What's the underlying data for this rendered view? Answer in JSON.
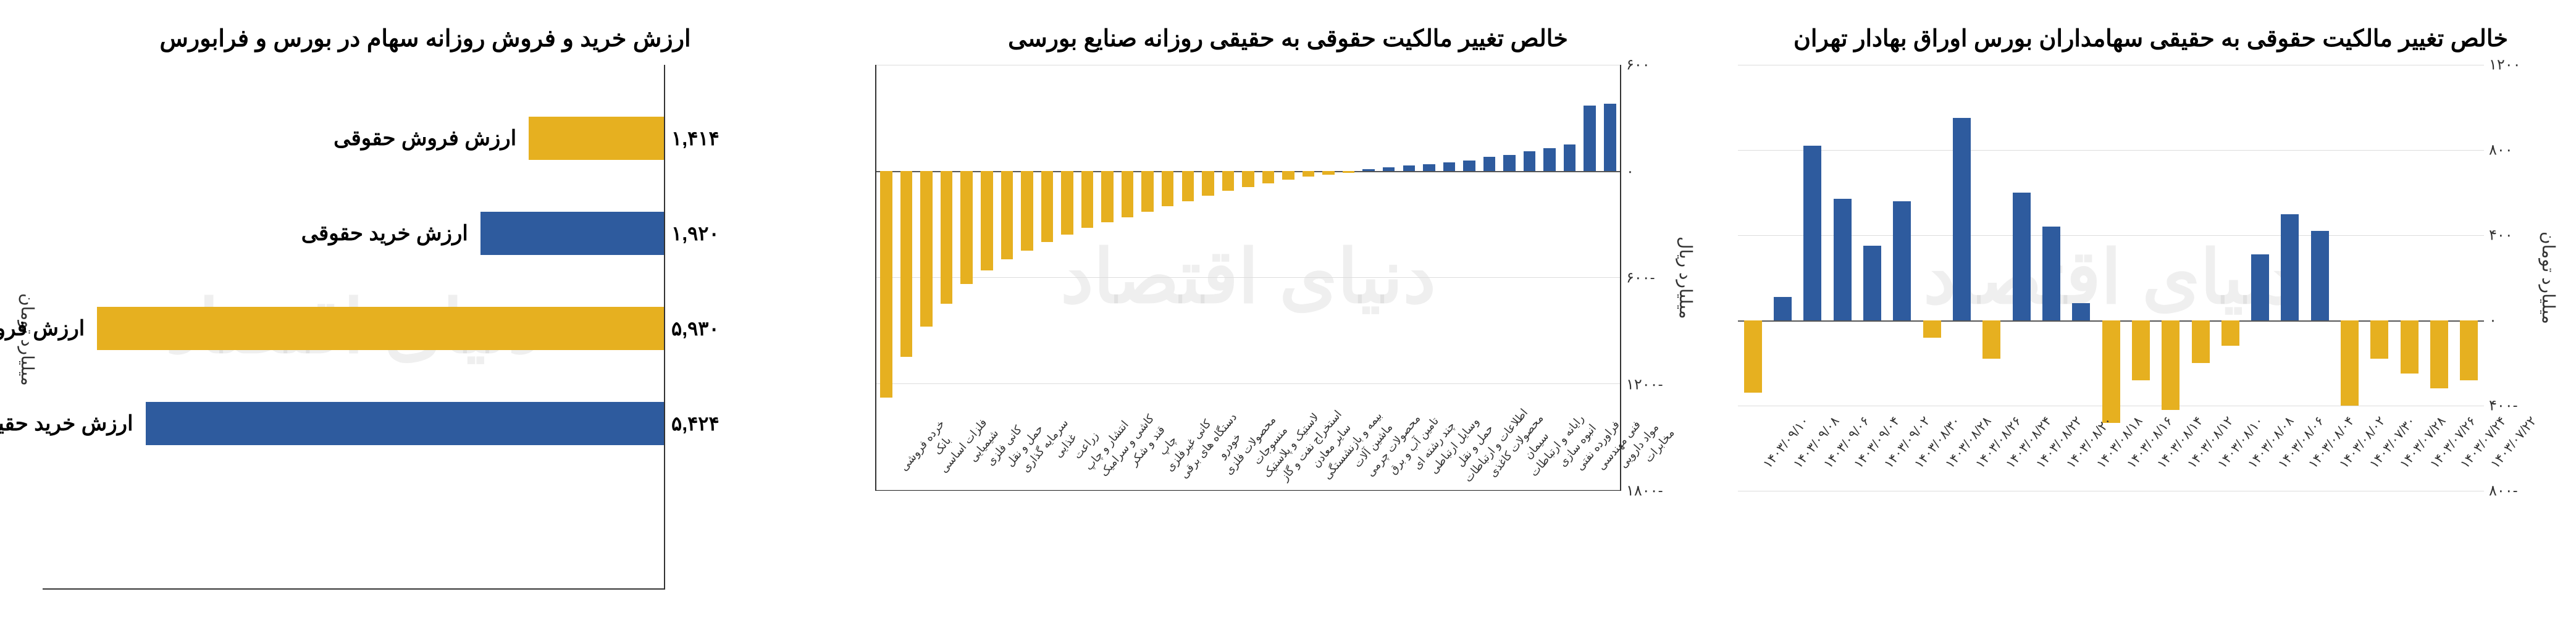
{
  "colors": {
    "blue": "#2e5b9e",
    "yellow": "#e6b020",
    "grid": "#dddddd",
    "axis": "#333333",
    "text": "#000000",
    "bg": "#ffffff"
  },
  "watermark": "دنیای اقتصاد",
  "chart1": {
    "title": "ارزش خرید و فروش روزانه سهام در بورس و فرابورس",
    "ylabel": "میلیارد تومان",
    "xmax": 6500,
    "rows": [
      {
        "label": "ارزش فروش حقوقی",
        "value": 1414,
        "display": "۱,۴۱۴",
        "color": "yellow"
      },
      {
        "label": "ارزش خرید حقوقی",
        "value": 1920,
        "display": "۱,۹۲۰",
        "color": "blue"
      },
      {
        "label": "ارزش فروش حقیقی",
        "value": 5930,
        "display": "۵,۹۳۰",
        "color": "yellow"
      },
      {
        "label": "ارزش خرید حقیقی",
        "value": 5424,
        "display": "۵,۴۲۴",
        "color": "blue"
      }
    ]
  },
  "chart2": {
    "title": "خالص تغییر مالکیت حقوقی به حقیقی  روزانه صنایع بورسی",
    "ylabel": "میلیارد ریال",
    "ymin": -1800,
    "ymax": 600,
    "ytick_step": 600,
    "yticks": [
      "۶۰۰",
      "۰",
      "-۶۰۰",
      "-۱۲۰۰",
      "-۱۸۰۰"
    ],
    "categories": [
      "مخابرات",
      "مواد دارویی",
      "فنی مهندسی",
      "فراورده نفتی",
      "انبوه سازی",
      "رایانه و ارتباطات",
      "سیمان",
      "محصولات کاغذی",
      "اطلاعات و ارتباطات",
      "حمل و نقل",
      "وسایل ارتباطی",
      "چند رشته ای",
      "تامین آب و برق",
      "محصولات چرمی",
      "ماشین آلات",
      "بیمه و بازنشستگی",
      "سایر معادن",
      "استخراج نفت و گاز",
      "لاستیک و پلاستیک",
      "منسوجات",
      "محصولات فلزی",
      "خودرو",
      "دستگاه های برقی",
      "کانی غیرفلزی",
      "چاپ",
      "قند و شکر",
      "کاشی و سرامیک",
      "انتشار و چاپ",
      "زراعت",
      "غذایی",
      "سرمایه گذاری",
      "حمل و نقل",
      "کانی فلزی",
      "شیمیایی",
      "فلزات اساسی",
      "بانک",
      "خرده فروشی"
    ],
    "values": [
      380,
      370,
      150,
      130,
      110,
      90,
      80,
      60,
      50,
      40,
      30,
      20,
      10,
      -10,
      -20,
      -30,
      -50,
      -70,
      -90,
      -110,
      -140,
      -170,
      -200,
      -230,
      -260,
      -290,
      -320,
      -360,
      -400,
      -450,
      -500,
      -560,
      -640,
      -750,
      -880,
      -1050,
      -1280
    ]
  },
  "chart3": {
    "title": "خالص تغییر مالکیت حقوقی به حقیقی سهامداران بورس اوراق بهادار تهران",
    "ylabel": "میلیارد تومان",
    "ymin": -800,
    "ymax": 1200,
    "ytick_step": 400,
    "yticks": [
      "۱۲۰۰",
      "۸۰۰",
      "۴۰۰",
      "۰",
      "-۴۰۰",
      "-۸۰۰"
    ],
    "categories": [
      "۱۴۰۳/۰۷/۲۲",
      "۱۴۰۳/۰۷/۲۴",
      "۱۴۰۳/۰۷/۲۶",
      "۱۴۰۳/۰۷/۲۸",
      "۱۴۰۳/۰۷/۳۰",
      "۱۴۰۳/۰۸/۰۲",
      "۱۴۰۳/۰۸/۰۴",
      "۱۴۰۳/۰۸/۰۶",
      "۱۴۰۳/۰۸/۰۸",
      "۱۴۰۳/۰۸/۱۰",
      "۱۴۰۳/۰۸/۱۲",
      "۱۴۰۳/۰۸/۱۴",
      "۱۴۰۳/۰۸/۱۶",
      "۱۴۰۳/۰۸/۱۸",
      "۱۴۰۳/۰۸/۲۰",
      "۱۴۰۳/۰۸/۲۲",
      "۱۴۰۳/۰۸/۲۴",
      "۱۴۰۳/۰۸/۲۶",
      "۱۴۰۳/۰۸/۲۸",
      "۱۴۰۳/۰۸/۳۰",
      "۱۴۰۳/۰۹/۰۲",
      "۱۴۰۳/۰۹/۰۴",
      "۱۴۰۳/۰۹/۰۶",
      "۱۴۰۳/۰۹/۰۸",
      "۱۴۰۳/۰۹/۱۰"
    ],
    "values": [
      -280,
      -320,
      -250,
      -180,
      -400,
      420,
      500,
      310,
      -120,
      -200,
      -420,
      -280,
      -480,
      80,
      440,
      600,
      -180,
      950,
      -80,
      560,
      350,
      570,
      820,
      110,
      -340
    ]
  }
}
